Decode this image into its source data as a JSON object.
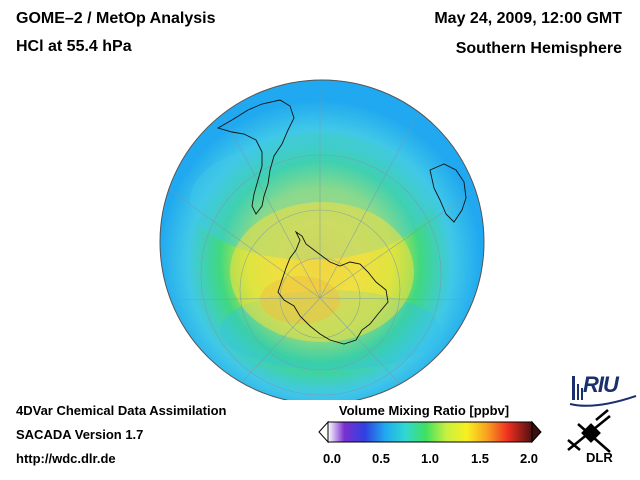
{
  "header": {
    "title_line1": "GOME–2 / MetOp Analysis",
    "title_line2": "HCl at 55.4 hPa",
    "date": "May 24, 2009, 12:00 GMT",
    "hemisphere": "Southern Hemisphere"
  },
  "footer": {
    "line1": "4DVar Chemical Data Assimilation",
    "line2": "SACADA Version 1.7",
    "line3": "http://wdc.dlr.de"
  },
  "colorbar": {
    "title": "Volume Mixing Ratio [ppbv]",
    "ticks": [
      "0.0",
      "0.5",
      "1.0",
      "1.5",
      "2.0"
    ],
    "min": 0.0,
    "max": 2.0,
    "colors": [
      "#ffffff",
      "#7a2fd0",
      "#3040e0",
      "#20a8f0",
      "#30d8d0",
      "#40e060",
      "#c8f040",
      "#f8f020",
      "#f8a020",
      "#f03020",
      "#b01010",
      "#501010"
    ]
  },
  "map": {
    "projection": "orthographic south polar",
    "field_colors": {
      "background_ring": "#20a8f0",
      "outer": "#40c8e8",
      "mid": "#40d880",
      "inner": "#c8e840",
      "core": "#f0e040",
      "pole": "#f0c848"
    }
  },
  "logos": {
    "riu": "RIU",
    "dlr": "DLR"
  }
}
